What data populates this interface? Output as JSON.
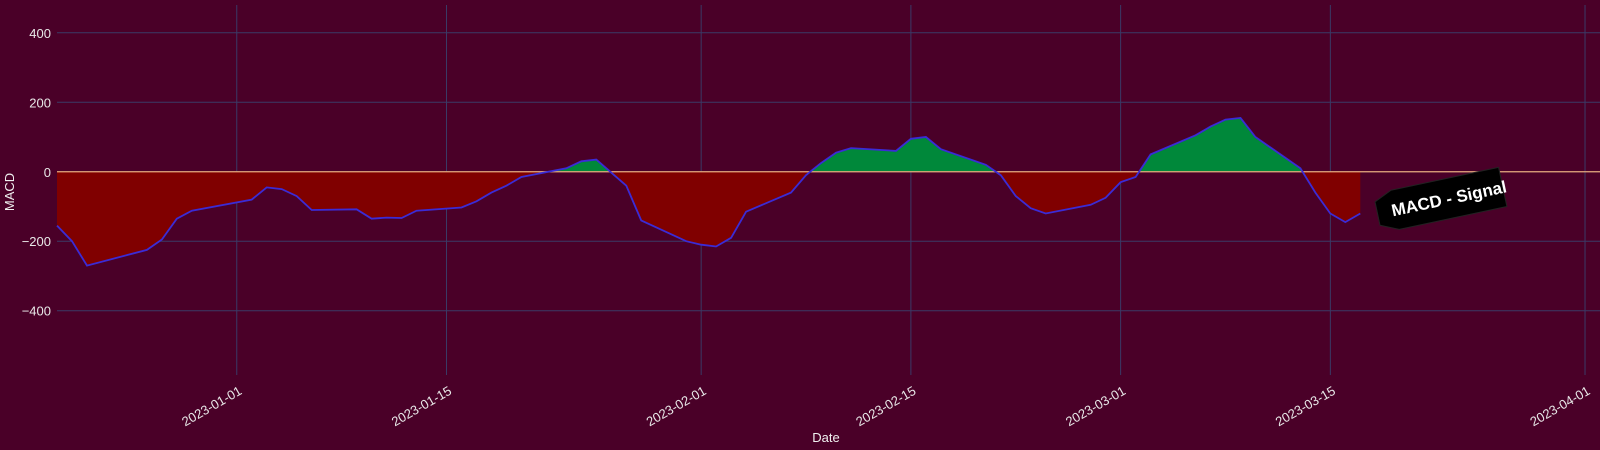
{
  "chart_data": {
    "type": "area",
    "title": "",
    "xlabel": "Date",
    "ylabel": "MACD",
    "x_tick_labels": [
      "2023-01-01",
      "2023-01-15",
      "2023-02-01",
      "2023-02-15",
      "2023-03-01",
      "2023-03-15",
      "2023-04-01"
    ],
    "y_tick_labels": [
      "400",
      "200",
      "0",
      "−200",
      "−400"
    ],
    "y_ticks": [
      400,
      200,
      0,
      -200,
      -400
    ],
    "ylim": [
      -585,
      480
    ],
    "xlim": [
      "2022-12-20",
      "2023-04-02"
    ],
    "grid": true,
    "zero_line": 0,
    "series": [
      {
        "points": [
          [
            "2022-12-20",
            -155
          ],
          [
            "2022-12-21",
            -200
          ],
          [
            "2022-12-22",
            -270
          ],
          [
            "2022-12-26",
            -225
          ],
          [
            "2022-12-27",
            -195
          ],
          [
            "2022-12-28",
            -135
          ],
          [
            "2022-12-29",
            -112
          ],
          [
            "2023-01-02",
            -80
          ],
          [
            "2023-01-03",
            -45
          ],
          [
            "2023-01-04",
            -50
          ],
          [
            "2023-01-05",
            -70
          ],
          [
            "2023-01-06",
            -110
          ],
          [
            "2023-01-09",
            -108
          ],
          [
            "2023-01-10",
            -135
          ],
          [
            "2023-01-11",
            -132
          ],
          [
            "2023-01-12",
            -133
          ],
          [
            "2023-01-13",
            -112
          ],
          [
            "2023-01-16",
            -103
          ],
          [
            "2023-01-17",
            -85
          ],
          [
            "2023-01-18",
            -60
          ],
          [
            "2023-01-19",
            -40
          ],
          [
            "2023-01-20",
            -15
          ],
          [
            "2023-01-23",
            10
          ],
          [
            "2023-01-24",
            30
          ],
          [
            "2023-01-25",
            35
          ],
          [
            "2023-01-27",
            -40
          ],
          [
            "2023-01-28",
            -140
          ],
          [
            "2023-01-31",
            -200
          ],
          [
            "2023-02-01",
            -210
          ],
          [
            "2023-02-02",
            -215
          ],
          [
            "2023-02-03",
            -190
          ],
          [
            "2023-02-04",
            -115
          ],
          [
            "2023-02-07",
            -60
          ],
          [
            "2023-02-08",
            -10
          ],
          [
            "2023-02-09",
            25
          ],
          [
            "2023-02-10",
            55
          ],
          [
            "2023-02-11",
            68
          ],
          [
            "2023-02-14",
            60
          ],
          [
            "2023-02-15",
            95
          ],
          [
            "2023-02-16",
            100
          ],
          [
            "2023-02-17",
            65
          ],
          [
            "2023-02-20",
            20
          ],
          [
            "2023-02-21",
            -10
          ],
          [
            "2023-02-22",
            -70
          ],
          [
            "2023-02-23",
            -105
          ],
          [
            "2023-02-24",
            -120
          ],
          [
            "2023-02-27",
            -95
          ],
          [
            "2023-02-28",
            -75
          ],
          [
            "2023-03-01",
            -30
          ],
          [
            "2023-03-02",
            -15
          ],
          [
            "2023-03-03",
            50
          ],
          [
            "2023-03-06",
            105
          ],
          [
            "2023-03-07",
            130
          ],
          [
            "2023-03-08",
            150
          ],
          [
            "2023-03-09",
            155
          ],
          [
            "2023-03-10",
            100
          ],
          [
            "2023-03-13",
            10
          ],
          [
            "2023-03-14",
            -60
          ],
          [
            "2023-03-15",
            -120
          ],
          [
            "2023-03-16",
            -145
          ],
          [
            "2023-03-17",
            -120
          ]
        ],
        "line_color": "#3b2bd6",
        "positive_fill": "#00883a",
        "negative_fill": "#800000"
      }
    ],
    "zero_line_color": "#e8a87a",
    "annotation": {
      "text": "MACD - Signal",
      "box_color": "#000000",
      "text_color": "#ffffff",
      "rotation_deg": -12
    }
  }
}
